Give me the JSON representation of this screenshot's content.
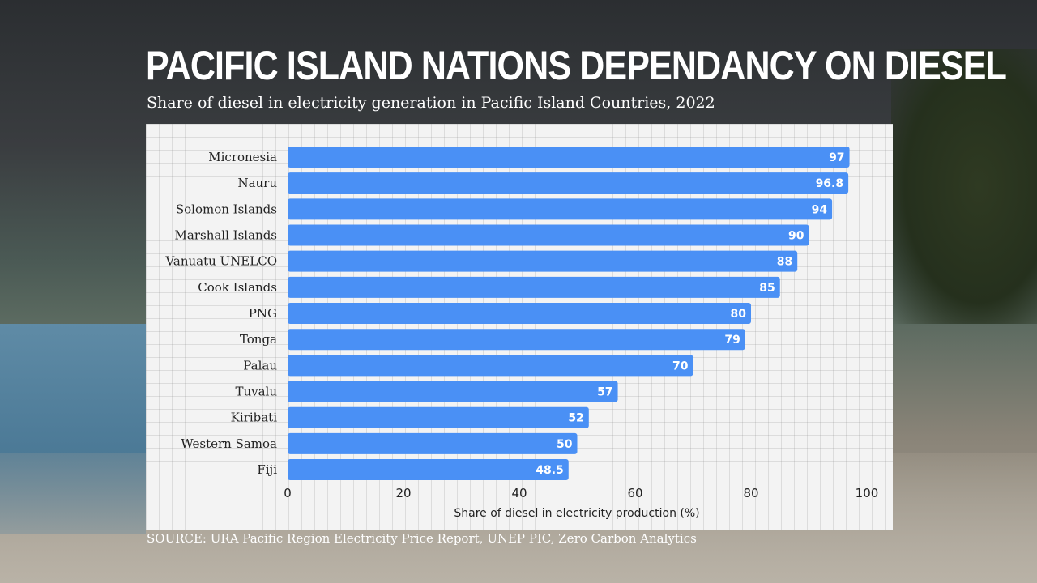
{
  "title": "PACIFIC ISLAND NATIONS DEPENDANCY ON DIESEL",
  "subtitle": "Share of diesel in electricity generation in Pacific Island Countries, 2022",
  "source": "SOURCE: URA Pacific Region Electricity Price Report, UNEP PIC, Zero Carbon Analytics",
  "chart_data": {
    "type": "bar",
    "orientation": "horizontal",
    "categories": [
      "Micronesia",
      "Nauru",
      "Solomon Islands",
      "Marshall Islands",
      "Vanuatu UNELCO",
      "Cook Islands",
      "PNG",
      "Tonga",
      "Palau",
      "Tuvalu",
      "Kiribati",
      "Western Samoa",
      "Fiji"
    ],
    "values": [
      97,
      96.8,
      94,
      90,
      88,
      85,
      80,
      79,
      70,
      57,
      52,
      50,
      48.5
    ],
    "xlabel": "Share of diesel in electricity production (%)",
    "xlim": [
      0,
      100
    ],
    "xticks": [
      "0",
      "20",
      "40",
      "60",
      "80",
      "100"
    ],
    "bar_color": "#4a90f5",
    "grid": false,
    "data_labels": true
  }
}
